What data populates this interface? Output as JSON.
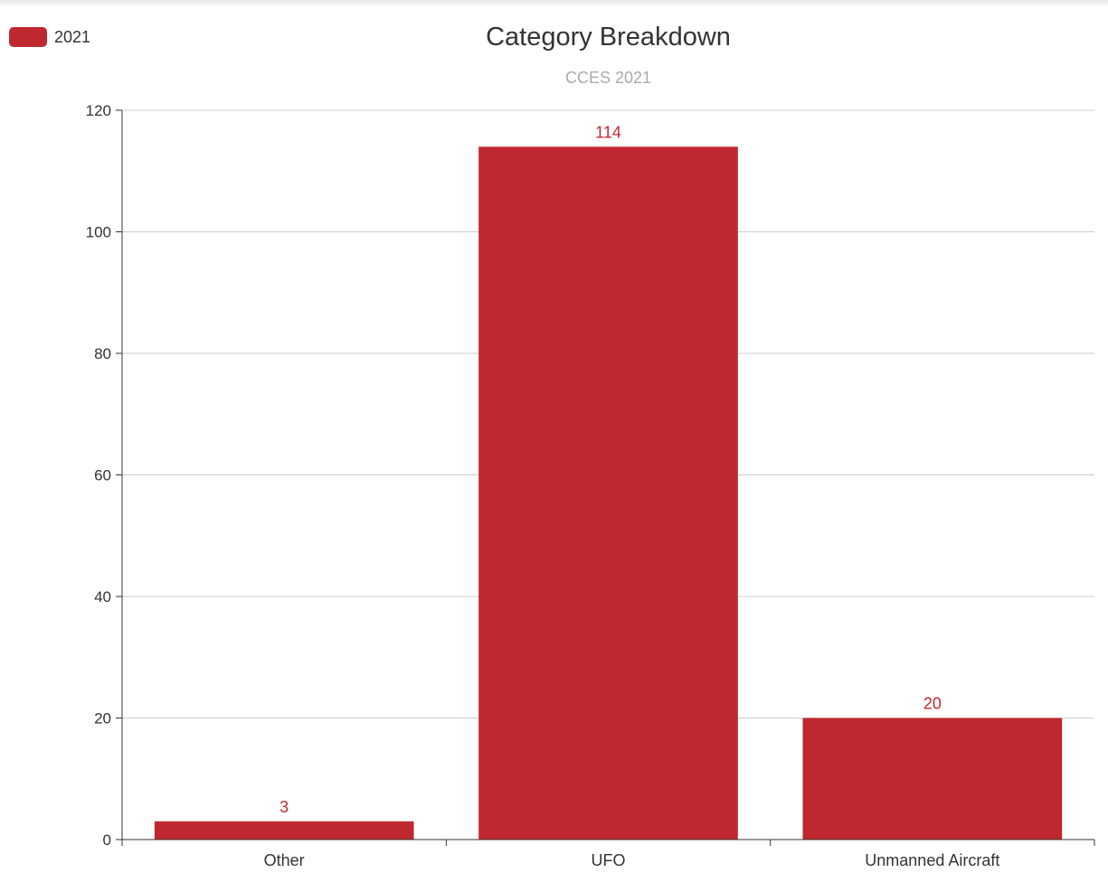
{
  "legend": {
    "label": "2021"
  },
  "colors": {
    "bar": "#c0282f",
    "grid": "#cccccc",
    "axis": "#333333"
  },
  "chart_data": {
    "type": "bar",
    "title": "Category Breakdown",
    "subtitle": "CCES 2021",
    "categories": [
      "Other",
      "UFO",
      "Unmanned Aircraft"
    ],
    "series": [
      {
        "name": "2021",
        "values": [
          3,
          114,
          20
        ]
      }
    ],
    "ylim": [
      0,
      120
    ],
    "yticks": [
      0,
      20,
      40,
      60,
      80,
      100,
      120
    ],
    "grid": true,
    "legend_position": "top-left",
    "data_labels": true
  }
}
